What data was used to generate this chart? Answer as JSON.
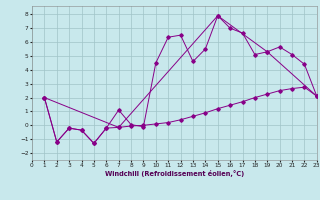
{
  "xlabel": "Windchill (Refroidissement éolien,°C)",
  "bg_color": "#c8e8ec",
  "grid_color": "#a0c4c8",
  "line_color": "#880088",
  "xlim": [
    0,
    23
  ],
  "ylim": [
    -2.5,
    8.6
  ],
  "yticks": [
    -2,
    -1,
    0,
    1,
    2,
    3,
    4,
    5,
    6,
    7,
    8
  ],
  "xticks": [
    0,
    1,
    2,
    3,
    4,
    5,
    6,
    7,
    8,
    9,
    10,
    11,
    12,
    13,
    14,
    15,
    16,
    17,
    18,
    19,
    20,
    21,
    22,
    23
  ],
  "line1_x": [
    1,
    2,
    3,
    4,
    5,
    6,
    7,
    8,
    9,
    10,
    11,
    12,
    13,
    14,
    15,
    16,
    17,
    18,
    19,
    20,
    21,
    22,
    23
  ],
  "line1_y": [
    2.0,
    -1.2,
    -0.2,
    -0.35,
    -1.3,
    -0.2,
    1.1,
    0.05,
    -0.1,
    4.5,
    6.35,
    6.5,
    4.6,
    5.5,
    7.9,
    7.0,
    6.65,
    5.1,
    5.3,
    5.65,
    5.1,
    4.4,
    2.1
  ],
  "line2_x": [
    1,
    2,
    3,
    4,
    5,
    6,
    7,
    8,
    9,
    10,
    11,
    12,
    13,
    14,
    15,
    16,
    17,
    18,
    19,
    20,
    21,
    22,
    23
  ],
  "line2_y": [
    2.0,
    -1.2,
    -0.2,
    -0.35,
    -1.3,
    -0.2,
    -0.15,
    -0.05,
    0.0,
    0.1,
    0.2,
    0.4,
    0.65,
    0.9,
    1.2,
    1.45,
    1.7,
    2.0,
    2.25,
    2.5,
    2.65,
    2.75,
    2.1
  ],
  "line3_x": [
    1,
    7,
    15,
    19,
    23
  ],
  "line3_y": [
    2.0,
    -0.15,
    7.9,
    5.3,
    2.1
  ]
}
